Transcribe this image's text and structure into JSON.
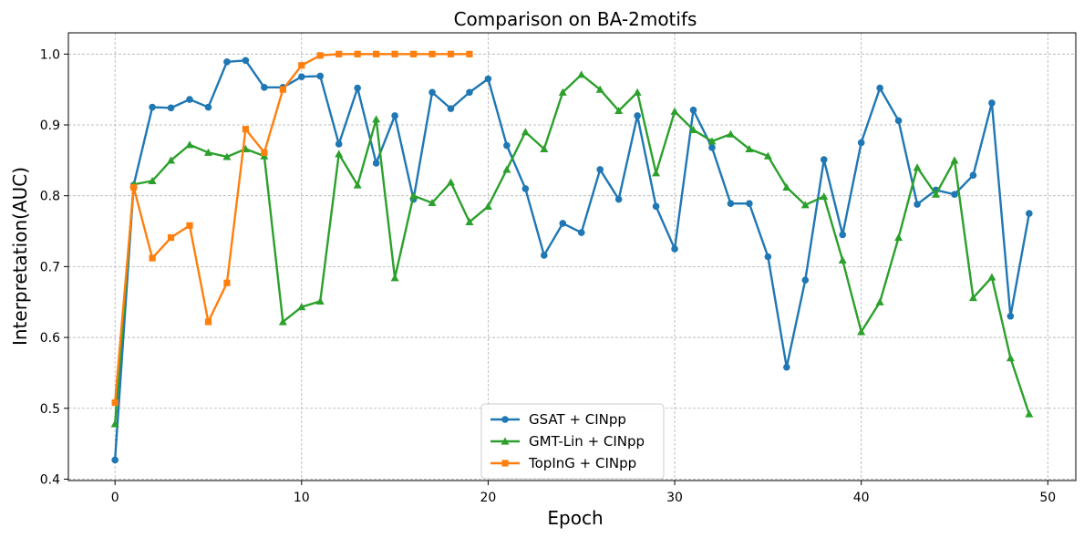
{
  "chart_data": {
    "type": "line",
    "title": "Comparison on BA-2motifs",
    "xlabel": "Epoch",
    "ylabel": "Interpretation(AUC)",
    "xlim": [
      -2.5,
      51.5
    ],
    "ylim": [
      0.398,
      1.03
    ],
    "xticks": [
      0,
      10,
      20,
      30,
      40,
      50
    ],
    "yticks": [
      0.4,
      0.5,
      0.6,
      0.7,
      0.8,
      0.9,
      1.0
    ],
    "xtick_labels": [
      "0",
      "10",
      "20",
      "30",
      "40",
      "50"
    ],
    "ytick_labels": [
      "0.4",
      "0.5",
      "0.6",
      "0.7",
      "0.8",
      "0.9",
      "1.0"
    ],
    "grid": true,
    "legend_position": "lower-center",
    "series": [
      {
        "name": "GSAT + CINpp",
        "color": "#1f77b4",
        "marker": "circle",
        "x": [
          0,
          1,
          2,
          3,
          4,
          5,
          6,
          7,
          8,
          9,
          10,
          11,
          12,
          13,
          14,
          15,
          16,
          17,
          18,
          19,
          20,
          21,
          22,
          23,
          24,
          25,
          26,
          27,
          28,
          29,
          30,
          31,
          32,
          33,
          34,
          35,
          36,
          37,
          38,
          39,
          40,
          41,
          42,
          43,
          44,
          45,
          46,
          47,
          48,
          49
        ],
        "values": [
          0.427,
          0.815,
          0.925,
          0.924,
          0.936,
          0.925,
          0.989,
          0.991,
          0.953,
          0.953,
          0.968,
          0.969,
          0.873,
          0.952,
          0.846,
          0.913,
          0.795,
          0.946,
          0.923,
          0.946,
          0.965,
          0.871,
          0.81,
          0.716,
          0.761,
          0.748,
          0.837,
          0.795,
          0.913,
          0.785,
          0.725,
          0.921,
          0.868,
          0.789,
          0.789,
          0.714,
          0.558,
          0.681,
          0.851,
          0.745,
          0.875,
          0.952,
          0.906,
          0.788,
          0.808,
          0.802,
          0.829,
          0.931,
          0.63,
          0.775
        ]
      },
      {
        "name": "GMT-Lin + CINpp",
        "color": "#2ca02c",
        "marker": "triangle",
        "x": [
          0,
          1,
          2,
          3,
          4,
          5,
          6,
          7,
          8,
          9,
          10,
          11,
          12,
          13,
          14,
          15,
          16,
          17,
          18,
          19,
          20,
          21,
          22,
          23,
          24,
          25,
          26,
          27,
          28,
          29,
          30,
          31,
          32,
          33,
          34,
          35,
          36,
          37,
          38,
          39,
          40,
          41,
          42,
          43,
          44,
          45,
          46,
          47,
          48,
          49
        ],
        "values": [
          0.478,
          0.816,
          0.821,
          0.85,
          0.872,
          0.861,
          0.855,
          0.866,
          0.856,
          0.622,
          0.643,
          0.651,
          0.859,
          0.815,
          0.908,
          0.684,
          0.8,
          0.79,
          0.819,
          0.763,
          0.785,
          0.837,
          0.89,
          0.866,
          0.946,
          0.971,
          0.95,
          0.92,
          0.946,
          0.832,
          0.919,
          0.893,
          0.877,
          0.887,
          0.866,
          0.856,
          0.812,
          0.787,
          0.799,
          0.709,
          0.608,
          0.65,
          0.741,
          0.84,
          0.802,
          0.85,
          0.656,
          0.685,
          0.571,
          0.492
        ]
      },
      {
        "name": "TopInG + CINpp",
        "color": "#ff7f0e",
        "marker": "square",
        "x": [
          0,
          1,
          2,
          3,
          4,
          5,
          6,
          7,
          8,
          9,
          10,
          11,
          12,
          13,
          14,
          15,
          16,
          17,
          18,
          19
        ],
        "values": [
          0.508,
          0.812,
          0.712,
          0.741,
          0.758,
          0.622,
          0.677,
          0.894,
          0.861,
          0.95,
          0.984,
          0.998,
          1.0,
          1.0,
          1.0,
          1.0,
          1.0,
          1.0,
          1.0,
          1.0
        ]
      }
    ]
  }
}
